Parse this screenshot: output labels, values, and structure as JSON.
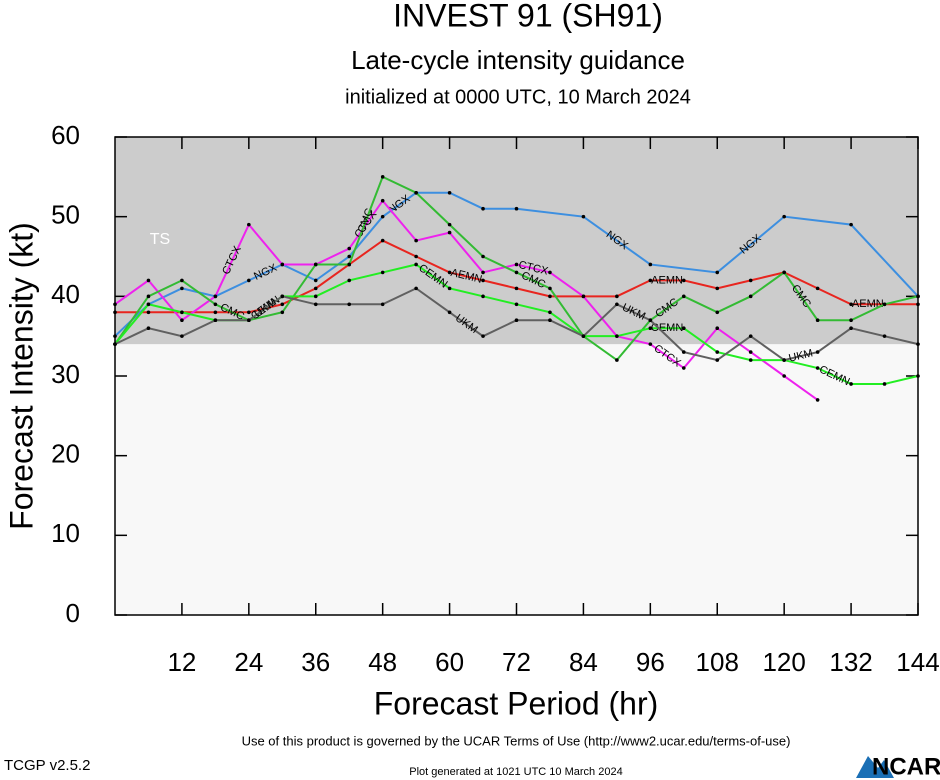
{
  "chart_data": {
    "type": "line",
    "title": "INVEST 91 (SH91)",
    "subtitle": "Late-cycle intensity guidance",
    "init_line": "initialized at 0000 UTC, 10 March 2024",
    "x_label": "Forecast Period (hr)",
    "y_label": "Forecast Intensity (kt)",
    "xlim": [
      0,
      144
    ],
    "xticks": [
      12,
      24,
      36,
      48,
      60,
      72,
      84,
      96,
      108,
      120,
      132,
      144
    ],
    "ylim": [
      0,
      60
    ],
    "yticks": [
      0,
      10,
      20,
      30,
      40,
      50,
      60
    ],
    "ts_threshold": 34,
    "ts_label": "TS",
    "series": [
      {
        "name": "AEMN",
        "color": "#e8251f",
        "x": [
          0,
          6,
          12,
          18,
          24,
          30,
          36,
          42,
          48,
          54,
          60,
          66,
          72,
          78,
          84,
          90,
          96,
          102,
          108,
          114,
          120,
          126,
          132,
          138,
          144
        ],
        "values": [
          38,
          38,
          38,
          38,
          38,
          39,
          41,
          44,
          47,
          45,
          43,
          42,
          41,
          40,
          40,
          40,
          42,
          42,
          41,
          42,
          43,
          41,
          39,
          39,
          39
        ]
      },
      {
        "name": "NGX",
        "color": "#3d8fe0",
        "x": [
          0,
          6,
          12,
          18,
          24,
          30,
          36,
          42,
          48,
          54,
          60,
          66,
          72,
          84,
          96,
          108,
          120,
          132,
          144
        ],
        "values": [
          35,
          39,
          41,
          40,
          42,
          44,
          42,
          45,
          50,
          53,
          53,
          51,
          51,
          50,
          44,
          43,
          50,
          49,
          40
        ]
      },
      {
        "name": "CTCX",
        "color": "#ee22ee",
        "x": [
          0,
          6,
          12,
          18,
          24,
          30,
          36,
          42,
          48,
          54,
          60,
          66,
          72,
          78,
          84,
          90,
          96,
          102,
          108,
          114,
          120,
          126
        ],
        "values": [
          39,
          42,
          37,
          40,
          49,
          44,
          44,
          46,
          52,
          47,
          48,
          43,
          44,
          43,
          40,
          35,
          34,
          31,
          36,
          33,
          30,
          27
        ]
      },
      {
        "name": "CMC",
        "color": "#33bb33",
        "x": [
          0,
          6,
          12,
          18,
          24,
          30,
          36,
          42,
          48,
          54,
          60,
          66,
          72,
          78,
          84,
          90,
          96,
          102,
          108,
          114,
          120,
          126,
          132,
          138,
          144
        ],
        "values": [
          34,
          40,
          42,
          39,
          37,
          38,
          44,
          44,
          55,
          53,
          49,
          45,
          43,
          41,
          35,
          32,
          37,
          40,
          38,
          40,
          43,
          37,
          37,
          39,
          40
        ]
      },
      {
        "name": "CEMN",
        "color": "#22ee22",
        "x": [
          0,
          6,
          12,
          18,
          24,
          30,
          36,
          42,
          48,
          54,
          60,
          66,
          72,
          78,
          84,
          90,
          96,
          102,
          108,
          114,
          120,
          126,
          132,
          138,
          144
        ],
        "values": [
          34,
          39,
          38,
          37,
          37,
          40,
          40,
          42,
          43,
          44,
          41,
          40,
          39,
          38,
          35,
          35,
          36,
          36,
          33,
          32,
          32,
          31,
          29,
          29,
          30
        ]
      },
      {
        "name": "UKM",
        "color": "#606060",
        "x": [
          0,
          6,
          12,
          18,
          24,
          30,
          36,
          42,
          48,
          54,
          60,
          66,
          72,
          78,
          84,
          90,
          96,
          102,
          108,
          114,
          120,
          126,
          132,
          138,
          144
        ],
        "values": [
          34,
          36,
          35,
          37,
          37,
          40,
          39,
          39,
          39,
          41,
          38,
          35,
          37,
          37,
          35,
          39,
          37,
          33,
          32,
          35,
          32,
          33,
          36,
          35,
          34
        ]
      }
    ],
    "footer_terms": "Use of this product is governed by the UCAR Terms of Use (http://www2.ucar.edu/terms-of-use)",
    "version": "TCGP v2.5.2",
    "generated": "Plot generated at 1021 UTC   10 March 2024",
    "logo": "NCAR"
  }
}
